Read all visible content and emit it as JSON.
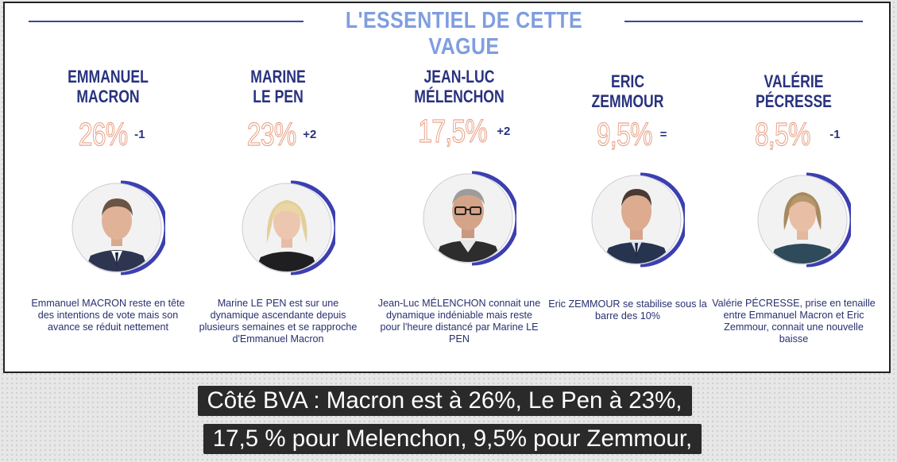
{
  "header": {
    "title": "L'ESSENTIEL DE CETTE VAGUE"
  },
  "candidates": [
    {
      "name_line1": "EMMANUEL",
      "name_line2": "MACRON",
      "percent": "26%",
      "delta": "-1",
      "description": "Emmanuel MACRON reste en tête des intentions de vote mais son avance se réduit nettement"
    },
    {
      "name_line1": "MARINE",
      "name_line2": "LE PEN",
      "percent": "23%",
      "delta": "+2",
      "description": "Marine LE PEN est sur une dynamique ascendante depuis plusieurs semaines et se rapproche d'Emmanuel Macron"
    },
    {
      "name_line1": "JEAN-LUC",
      "name_line2": "MÉLENCHON",
      "percent": "17,5%",
      "delta": "+2",
      "description": "Jean-Luc MÉLENCHON connait une dynamique indéniable mais reste pour l'heure distancé par Marine LE PEN"
    },
    {
      "name_line1": "ERIC",
      "name_line2": "ZEMMOUR",
      "percent": "9,5%",
      "delta": "=",
      "description": "Eric ZEMMOUR se stabilise sous la barre des 10%"
    },
    {
      "name_line1": "VALÉRIE",
      "name_line2": "PÉCRESSE",
      "percent": "8,5%",
      "delta": "-1",
      "description": "Valérie PÉCRESSE, prise en tenaille entre Emmanuel Macron et Eric Zemmour, connait une nouvelle baisse"
    }
  ],
  "subtitle": {
    "line1": "Côté BVA : Macron est à 26%, Le Pen à 23%,",
    "line2": "17,5 % pour Melenchon, 9,5% pour Zemmour,"
  },
  "colors": {
    "name": "#28327e",
    "percent_outline": "#e9a48a",
    "header": "#7f9ee0",
    "ring": "#3b3fb0"
  }
}
